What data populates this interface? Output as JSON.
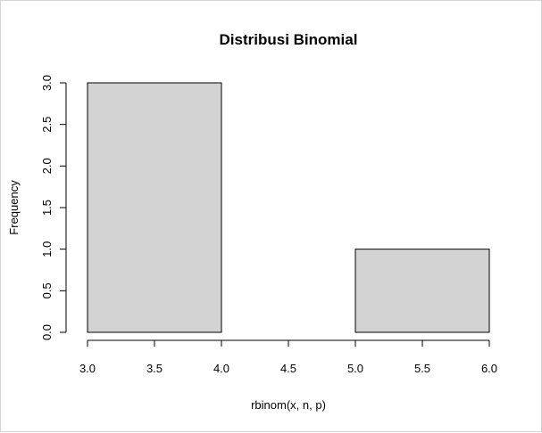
{
  "chart_data": {
    "type": "bar",
    "title": "Distribusi Binomial",
    "xlabel": "rbinom(x, n, p)",
    "ylabel": "Frequency",
    "xlim": [
      3.0,
      6.0
    ],
    "ylim": [
      0.0,
      3.0
    ],
    "x_ticks": [
      "3.0",
      "3.5",
      "4.0",
      "4.5",
      "5.0",
      "5.5",
      "6.0"
    ],
    "y_ticks": [
      "0.0",
      "0.5",
      "1.0",
      "1.5",
      "2.0",
      "2.5",
      "3.0"
    ],
    "bins": [
      {
        "start": 3.0,
        "end": 4.0,
        "count": 3
      },
      {
        "start": 4.0,
        "end": 5.0,
        "count": 0
      },
      {
        "start": 5.0,
        "end": 6.0,
        "count": 1
      }
    ],
    "bar_fill": "#d3d3d3",
    "bar_stroke": "#000000",
    "grid": false,
    "legend": "none"
  }
}
